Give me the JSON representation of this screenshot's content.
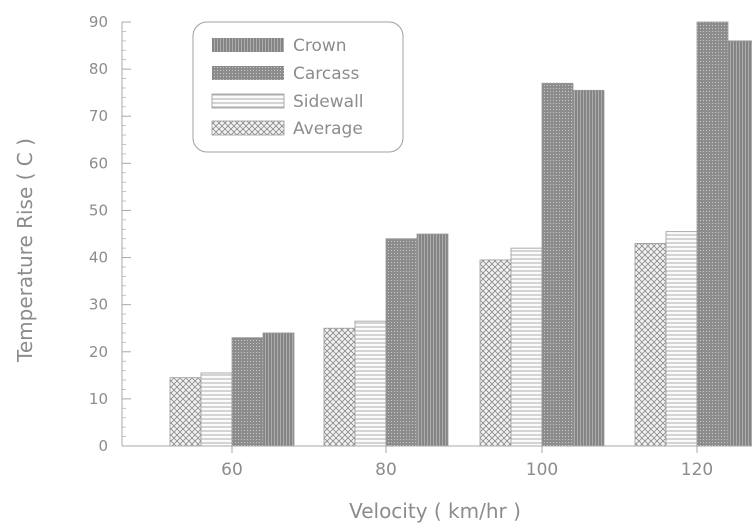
{
  "chart_data": {
    "type": "bar",
    "title": "",
    "xlabel": "Velocity ( km/hr )",
    "ylabel": "Temperature Rise ( C )",
    "categories": [
      "60",
      "80",
      "100",
      "120"
    ],
    "ylim": [
      0,
      90
    ],
    "yticks": [
      0,
      10,
      20,
      30,
      40,
      50,
      60,
      70,
      80,
      90
    ],
    "series": [
      {
        "name": "Average",
        "values": [
          14.5,
          25,
          39.5,
          43
        ],
        "pattern": "crosshatch",
        "color": "#d9d9d9"
      },
      {
        "name": "Sidewall",
        "values": [
          15.5,
          26.5,
          42,
          45.5
        ],
        "pattern": "horizontal-lines",
        "color": "#f5f5f5"
      },
      {
        "name": "Carcass",
        "values": [
          23,
          44,
          77,
          90
        ],
        "pattern": "dense-dark",
        "color": "#9a9a9a"
      },
      {
        "name": "Crown",
        "values": [
          24,
          45,
          75.5,
          86
        ],
        "pattern": "dense-vertical",
        "color": "#8f8f8f"
      }
    ],
    "legend": {
      "placement": "top-left",
      "entries": [
        "Crown",
        "Carcass",
        "Sidewall",
        "Average"
      ]
    },
    "grid": false
  }
}
